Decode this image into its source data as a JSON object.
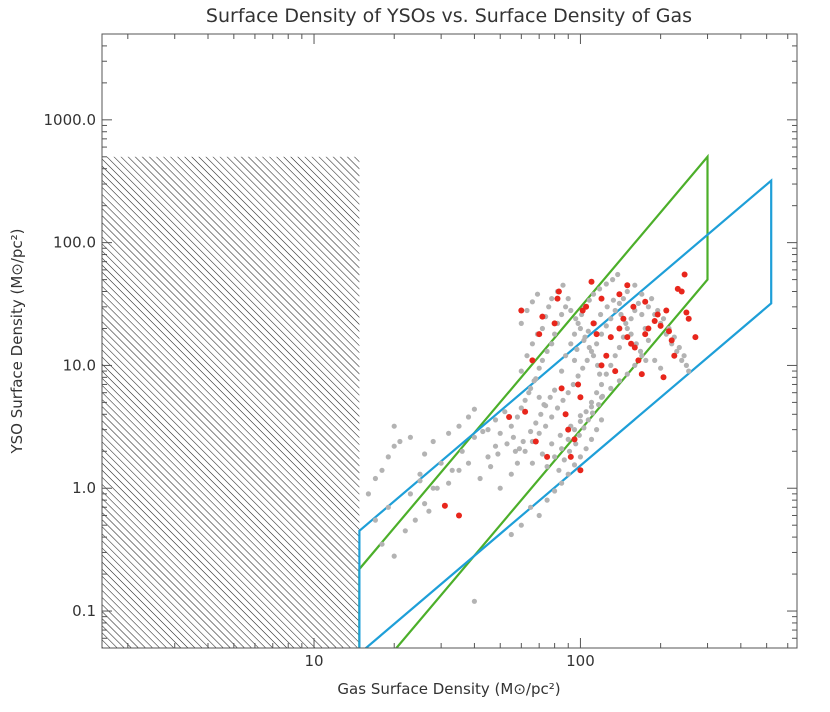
{
  "chart_data": {
    "type": "scatter",
    "title": "Surface Density of YSOs vs. Surface Density of Gas",
    "xlabel": "Gas Surface Density (M⊙/pc²)",
    "ylabel": "YSO Surface Density (M⊙/pc²)",
    "xscale": "log",
    "yscale": "log",
    "xlim": [
      1.6,
      650
    ],
    "ylim": [
      0.05,
      5000
    ],
    "x_ticks": [
      {
        "value": 10,
        "label": "10"
      },
      {
        "value": 100,
        "label": "100"
      }
    ],
    "y_ticks": [
      {
        "value": 0.1,
        "label": "0.1"
      },
      {
        "value": 1,
        "label": "1.0"
      },
      {
        "value": 10,
        "label": "10.0"
      },
      {
        "value": 100,
        "label": "100.0"
      },
      {
        "value": 1000,
        "label": "1000.0"
      }
    ],
    "hatched_region": {
      "x": [
        1.6,
        14.8
      ],
      "y": [
        0.05,
        500
      ],
      "label": ""
    },
    "regions": [
      {
        "name": "green band",
        "color": "#4caf2a",
        "vertices": [
          [
            14.8,
            0.22
          ],
          [
            300,
            500
          ],
          [
            300,
            50
          ],
          [
            14.8,
            0.022
          ]
        ]
      },
      {
        "name": "blue band",
        "color": "#1e9fd8",
        "vertices": [
          [
            14.8,
            0.45
          ],
          [
            520,
            320
          ],
          [
            520,
            32
          ],
          [
            14.8,
            0.045
          ]
        ]
      }
    ],
    "series": [
      {
        "name": "gray points",
        "color": "#b3b3b3",
        "points": [
          [
            16,
            0.9
          ],
          [
            17,
            1.2
          ],
          [
            18,
            1.4
          ],
          [
            19,
            1.8
          ],
          [
            20,
            2.2
          ],
          [
            21,
            2.4
          ],
          [
            23,
            2.6
          ],
          [
            25,
            1.3
          ],
          [
            26,
            1.9
          ],
          [
            28,
            2.4
          ],
          [
            30,
            1.6
          ],
          [
            32,
            2.8
          ],
          [
            35,
            3.2
          ],
          [
            38,
            3.8
          ],
          [
            40,
            4.4
          ],
          [
            24,
            0.55
          ],
          [
            26,
            0.75
          ],
          [
            28,
            1.0
          ],
          [
            32,
            1.1
          ],
          [
            35,
            1.4
          ],
          [
            38,
            1.6
          ],
          [
            42,
            1.2
          ],
          [
            45,
            1.8
          ],
          [
            48,
            2.2
          ],
          [
            50,
            2.8
          ],
          [
            55,
            3.2
          ],
          [
            58,
            3.8
          ],
          [
            60,
            4.5
          ],
          [
            62,
            5.2
          ],
          [
            65,
            6.5
          ],
          [
            68,
            7.8
          ],
          [
            70,
            9.5
          ],
          [
            72,
            11
          ],
          [
            75,
            13
          ],
          [
            78,
            15
          ],
          [
            80,
            18
          ],
          [
            82,
            22
          ],
          [
            85,
            26
          ],
          [
            88,
            30
          ],
          [
            90,
            35
          ],
          [
            50,
            1.0
          ],
          [
            55,
            1.3
          ],
          [
            58,
            1.6
          ],
          [
            62,
            2.0
          ],
          [
            66,
            2.4
          ],
          [
            70,
            2.8
          ],
          [
            74,
            3.2
          ],
          [
            78,
            3.8
          ],
          [
            82,
            4.5
          ],
          [
            86,
            5.2
          ],
          [
            90,
            6.0
          ],
          [
            94,
            7.0
          ],
          [
            98,
            8.2
          ],
          [
            102,
            9.5
          ],
          [
            106,
            11
          ],
          [
            110,
            13
          ],
          [
            115,
            15
          ],
          [
            120,
            18
          ],
          [
            125,
            21
          ],
          [
            130,
            24
          ],
          [
            135,
            28
          ],
          [
            140,
            32
          ],
          [
            145,
            35
          ],
          [
            150,
            40
          ],
          [
            160,
            45
          ],
          [
            170,
            38
          ],
          [
            180,
            30
          ],
          [
            190,
            26
          ],
          [
            200,
            22
          ],
          [
            210,
            18
          ],
          [
            220,
            15
          ],
          [
            230,
            13
          ],
          [
            240,
            11
          ],
          [
            75,
            1.5
          ],
          [
            80,
            1.8
          ],
          [
            85,
            2.1
          ],
          [
            90,
            2.5
          ],
          [
            95,
            3.0
          ],
          [
            100,
            3.5
          ],
          [
            105,
            4.2
          ],
          [
            110,
            5.0
          ],
          [
            115,
            6.0
          ],
          [
            120,
            7.0
          ],
          [
            125,
            8.5
          ],
          [
            130,
            10
          ],
          [
            135,
            12
          ],
          [
            140,
            14
          ],
          [
            145,
            17
          ],
          [
            150,
            20
          ],
          [
            155,
            24
          ],
          [
            160,
            28
          ],
          [
            165,
            32
          ],
          [
            170,
            26
          ],
          [
            175,
            20
          ],
          [
            180,
            16
          ],
          [
            70,
            0.6
          ],
          [
            75,
            0.8
          ],
          [
            80,
            0.95
          ],
          [
            85,
            1.1
          ],
          [
            90,
            1.3
          ],
          [
            95,
            1.55
          ],
          [
            100,
            1.8
          ],
          [
            105,
            2.1
          ],
          [
            110,
            2.5
          ],
          [
            115,
            3.0
          ],
          [
            120,
            3.6
          ],
          [
            72,
            20
          ],
          [
            74,
            25
          ],
          [
            76,
            30
          ],
          [
            78,
            35
          ],
          [
            82,
            40
          ],
          [
            86,
            45
          ],
          [
            92,
            28
          ],
          [
            96,
            24
          ],
          [
            100,
            20
          ],
          [
            104,
            17
          ],
          [
            108,
            14
          ],
          [
            112,
            12
          ],
          [
            116,
            10
          ],
          [
            118,
            8.5
          ],
          [
            60,
            9
          ],
          [
            63,
            12
          ],
          [
            66,
            15
          ],
          [
            69,
            18
          ],
          [
            64,
            6
          ],
          [
            67,
            7.5
          ],
          [
            70,
            5.5
          ],
          [
            73,
            4.8
          ],
          [
            56,
            2.6
          ],
          [
            59,
            2.1
          ],
          [
            45,
            3.0
          ],
          [
            48,
            3.6
          ],
          [
            52,
            4.2
          ],
          [
            40,
            2.6
          ],
          [
            43,
            2.9
          ],
          [
            36,
            2.0
          ],
          [
            33,
            1.4
          ],
          [
            29,
            1.0
          ],
          [
            27,
            0.65
          ],
          [
            22,
            0.45
          ],
          [
            18,
            0.35
          ],
          [
            20,
            0.28
          ],
          [
            40,
            0.12
          ],
          [
            55,
            0.42
          ],
          [
            60,
            0.5
          ],
          [
            65,
            0.7
          ],
          [
            85,
            9
          ],
          [
            88,
            12
          ],
          [
            92,
            15
          ],
          [
            95,
            18
          ],
          [
            98,
            22
          ],
          [
            101,
            26
          ],
          [
            104,
            30
          ],
          [
            108,
            34
          ],
          [
            112,
            38
          ],
          [
            118,
            42
          ],
          [
            125,
            46
          ],
          [
            132,
            50
          ],
          [
            138,
            55
          ],
          [
            185,
            35
          ],
          [
            195,
            28
          ],
          [
            205,
            24
          ],
          [
            215,
            20
          ],
          [
            225,
            17
          ],
          [
            235,
            14
          ],
          [
            245,
            12
          ],
          [
            250,
            10
          ],
          [
            255,
            9
          ],
          [
            190,
            11
          ],
          [
            200,
            9.5
          ],
          [
            170,
            12
          ],
          [
            160,
            10
          ],
          [
            150,
            8.5
          ],
          [
            140,
            7.5
          ],
          [
            130,
            6.5
          ],
          [
            120,
            5.5
          ],
          [
            110,
            4.6
          ],
          [
            100,
            3.9
          ],
          [
            92,
            3.2
          ],
          [
            84,
            2.7
          ],
          [
            78,
            2.3
          ],
          [
            72,
            1.9
          ],
          [
            66,
            1.6
          ],
          [
            95,
            11
          ],
          [
            97,
            13.5
          ],
          [
            103,
            16
          ],
          [
            107,
            19
          ],
          [
            113,
            22
          ],
          [
            119,
            26
          ],
          [
            126,
            30
          ],
          [
            133,
            34
          ],
          [
            142,
            26
          ],
          [
            148,
            22
          ],
          [
            155,
            18
          ],
          [
            162,
            15
          ],
          [
            168,
            13
          ],
          [
            176,
            11
          ],
          [
            83,
            1.4
          ],
          [
            87,
            1.7
          ],
          [
            91,
            2.0
          ],
          [
            96,
            2.3
          ],
          [
            99,
            2.7
          ],
          [
            103,
            3.1
          ],
          [
            107,
            3.6
          ],
          [
            111,
            4.1
          ],
          [
            117,
            4.8
          ],
          [
            121,
            5.6
          ],
          [
            60,
            22
          ],
          [
            63,
            28
          ],
          [
            66,
            33
          ],
          [
            69,
            38
          ],
          [
            46,
            1.5
          ],
          [
            49,
            1.9
          ],
          [
            53,
            2.3
          ],
          [
            57,
            2.0
          ],
          [
            61,
            2.4
          ],
          [
            65,
            2.9
          ],
          [
            68,
            3.4
          ],
          [
            71,
            4.0
          ],
          [
            74,
            4.7
          ],
          [
            77,
            5.5
          ],
          [
            80,
            6.3
          ],
          [
            20,
            3.2
          ],
          [
            17,
            0.55
          ],
          [
            19,
            0.7
          ],
          [
            23,
            0.9
          ],
          [
            25,
            1.15
          ]
        ]
      },
      {
        "name": "red points",
        "color": "#e8261c",
        "points": [
          [
            31,
            0.72
          ],
          [
            35,
            0.6
          ],
          [
            62,
            4.2
          ],
          [
            66,
            11
          ],
          [
            70,
            18
          ],
          [
            72,
            25
          ],
          [
            80,
            22
          ],
          [
            82,
            35
          ],
          [
            83,
            40
          ],
          [
            85,
            6.5
          ],
          [
            88,
            4.0
          ],
          [
            90,
            3.0
          ],
          [
            92,
            1.8
          ],
          [
            95,
            2.5
          ],
          [
            100,
            5.5
          ],
          [
            98,
            7.0
          ],
          [
            102,
            28
          ],
          [
            105,
            30
          ],
          [
            112,
            22
          ],
          [
            115,
            18
          ],
          [
            120,
            10
          ],
          [
            125,
            12
          ],
          [
            130,
            17
          ],
          [
            135,
            9.0
          ],
          [
            140,
            20
          ],
          [
            145,
            24
          ],
          [
            150,
            17
          ],
          [
            155,
            15
          ],
          [
            160,
            14
          ],
          [
            165,
            11
          ],
          [
            170,
            8.5
          ],
          [
            175,
            18
          ],
          [
            180,
            20
          ],
          [
            190,
            23
          ],
          [
            195,
            26
          ],
          [
            200,
            21
          ],
          [
            210,
            28
          ],
          [
            215,
            19
          ],
          [
            220,
            16
          ],
          [
            225,
            12
          ],
          [
            232,
            42
          ],
          [
            240,
            40
          ],
          [
            250,
            27
          ],
          [
            255,
            24
          ],
          [
            270,
            17
          ],
          [
            60,
            28
          ],
          [
            100,
            1.4
          ],
          [
            120,
            35
          ],
          [
            140,
            38
          ],
          [
            205,
            8.0
          ],
          [
            68,
            2.4
          ],
          [
            75,
            1.8
          ],
          [
            158,
            30
          ],
          [
            246,
            55
          ],
          [
            110,
            48
          ],
          [
            54,
            3.8
          ],
          [
            150,
            45
          ],
          [
            175,
            33
          ]
        ]
      }
    ]
  }
}
